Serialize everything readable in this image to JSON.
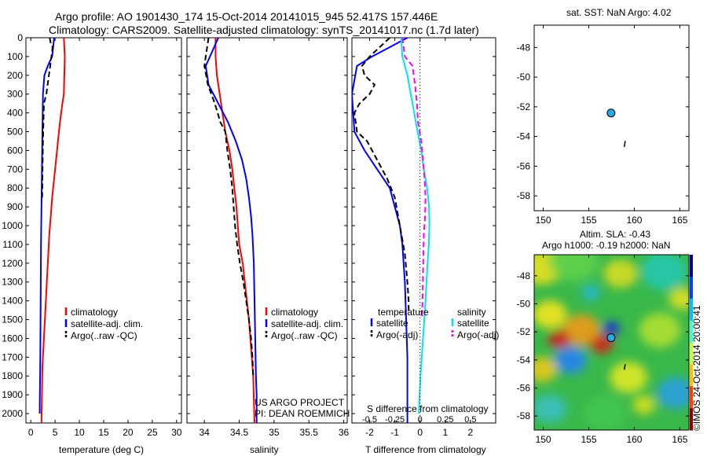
{
  "header": {
    "line1": "Argo profile: AO 1901430_174 15-Oct-2014 20141015_945 52.417S 157.446E",
    "line2": "Climatology: CARS2009. Satellite-adjusted climatology: synTS_20141017.nc (1.7d later)"
  },
  "colors": {
    "climatology": "#ff0000",
    "satellite": "#0000ff",
    "argo": "#000000",
    "argo_dash": "#000000",
    "salinity_sat": "#00e5ee",
    "salinity_argo": "#ff00ff"
  },
  "chart_data": [
    {
      "type": "line",
      "id": "temperature",
      "xlabel": "temperature (deg C)",
      "ylabel": "",
      "xlim": [
        -1,
        31
      ],
      "ylim": [
        2050,
        0
      ],
      "xticks": [
        0,
        5,
        10,
        15,
        20,
        25,
        30
      ],
      "yticks": [
        0,
        100,
        200,
        300,
        400,
        500,
        600,
        700,
        800,
        900,
        1000,
        1100,
        1200,
        1300,
        1400,
        1500,
        1600,
        1700,
        1800,
        1900,
        2000
      ],
      "legend": [
        "climatology",
        "satellite-adj. clim.",
        "Argo(..raw -QC)"
      ],
      "legend_position": "lower-right",
      "series": [
        {
          "name": "climatology",
          "style": "solid",
          "color": "#ff0000",
          "x": [
            6.8,
            6.9,
            7.0,
            6.9,
            6.8,
            6.5,
            6.0,
            5.6,
            5.2,
            4.8,
            4.4,
            4.1,
            3.8,
            3.6,
            3.4,
            3.2,
            3.0,
            2.8,
            2.6,
            2.4,
            2.3,
            2.2
          ],
          "y": [
            0,
            50,
            100,
            200,
            300,
            350,
            450,
            550,
            650,
            750,
            850,
            950,
            1050,
            1150,
            1250,
            1350,
            1450,
            1550,
            1650,
            1750,
            1900,
            2050
          ]
        },
        {
          "name": "satellite-adj. clim.",
          "style": "solid",
          "color": "#0000ff",
          "x": [
            4.8,
            4.4,
            3.5,
            2.8,
            2.5,
            2.4,
            2.3,
            2.2,
            2.1,
            2.05,
            2.0,
            1.95,
            1.9,
            1.85,
            1.85
          ],
          "y": [
            0,
            100,
            150,
            200,
            300,
            500,
            700,
            900,
            1100,
            1300,
            1500,
            1700,
            1850,
            1950,
            2000
          ]
        },
        {
          "name": "Argo(..raw -QC)",
          "style": "dashed",
          "color": "#000000",
          "x": [
            3.9,
            4.1,
            4.5,
            4.0,
            3.2,
            2.7,
            2.6,
            2.5,
            2.45,
            2.4,
            2.35
          ],
          "y": [
            0,
            30,
            50,
            150,
            300,
            350,
            450,
            550,
            650,
            750,
            850
          ]
        }
      ],
      "annotations": []
    },
    {
      "type": "line",
      "id": "salinity",
      "xlabel": "salinity",
      "ylabel": "",
      "xlim": [
        33.75,
        36.05
      ],
      "ylim": [
        2050,
        0
      ],
      "xticks": [
        34,
        34.5,
        35,
        35.5,
        36
      ],
      "legend": [
        "climatology",
        "satellite-adj. clim.",
        "Argo(..raw -QC)"
      ],
      "legend_position": "lower-right",
      "series": [
        {
          "name": "climatology",
          "style": "solid",
          "color": "#ff0000",
          "x": [
            34.16,
            34.16,
            34.18,
            34.22,
            34.26,
            34.3,
            34.36,
            34.4,
            34.43,
            34.46,
            34.48,
            34.5,
            34.55,
            34.58,
            34.61,
            34.64,
            34.66,
            34.68,
            34.7,
            34.72
          ],
          "y": [
            0,
            100,
            200,
            300,
            400,
            500,
            600,
            700,
            800,
            900,
            1000,
            1100,
            1200,
            1300,
            1400,
            1500,
            1600,
            1700,
            1800,
            2050
          ]
        },
        {
          "name": "satellite-adj. clim.",
          "style": "solid",
          "color": "#0000ff",
          "x": [
            34.2,
            34.08,
            34.02,
            34.06,
            34.2,
            34.34,
            34.45,
            34.54,
            34.6,
            34.64,
            34.67,
            34.69,
            34.71,
            34.72,
            34.73,
            34.74,
            34.75,
            34.75,
            34.75
          ],
          "y": [
            0,
            100,
            150,
            250,
            350,
            450,
            550,
            650,
            750,
            850,
            950,
            1050,
            1200,
            1400,
            1600,
            1800,
            1900,
            2000,
            2050
          ]
        },
        {
          "name": "Argo(..raw -QC)",
          "style": "dashed",
          "color": "#000000",
          "x": [
            34.06,
            34.02,
            34.0,
            34.05,
            34.15,
            34.23,
            34.3,
            34.33,
            34.37,
            34.4,
            34.42,
            34.44,
            34.47,
            34.51,
            34.56,
            34.6,
            34.64,
            34.67,
            34.69,
            34.7
          ],
          "y": [
            0,
            100,
            150,
            250,
            350,
            450,
            500,
            600,
            700,
            800,
            900,
            1000,
            1100,
            1200,
            1300,
            1400,
            1500,
            1600,
            1700,
            1800
          ]
        }
      ],
      "annotations": [
        "US ARGO PROJECT",
        "PI: DEAN ROEMMICH"
      ]
    },
    {
      "type": "line",
      "id": "difference",
      "xlabel": "T difference from climatology",
      "ylabel": "",
      "xlabel_top": "S difference from climatology",
      "xlim": [
        -2.7,
        3.0
      ],
      "ylim": [
        2050,
        0
      ],
      "xticks": [
        -2,
        -1,
        0,
        1,
        2
      ],
      "xticks_salinity": [
        -0.5,
        -0.25,
        0,
        0.25,
        0.5
      ],
      "legend_groups": [
        {
          "title": "temperature",
          "entries": [
            "satellite",
            "Argo(-adj)"
          ]
        },
        {
          "title": "salinity",
          "entries": [
            "satellite",
            "Argo(-adj)"
          ]
        }
      ],
      "legend_position": "lower-center",
      "series": [
        {
          "name": "satellite",
          "group": "temperature",
          "style": "solid",
          "color": "#0000ff",
          "x": [
            -0.5,
            -1.2,
            -1.9,
            -2.5,
            -2.7,
            -2.6,
            -2.2,
            -1.7,
            -1.2,
            -1.0,
            -0.8,
            -0.7,
            -0.6,
            -0.55,
            -0.5,
            -0.5
          ],
          "y": [
            0,
            50,
            100,
            150,
            300,
            500,
            600,
            700,
            800,
            900,
            1000,
            1100,
            1300,
            1500,
            1700,
            2050
          ]
        },
        {
          "name": "Argo(-adj)",
          "group": "temperature",
          "style": "dashed",
          "color": "#000000",
          "x": [
            -1.2,
            -1.6,
            -2.0,
            -2.3,
            -2.2,
            -1.8,
            -2.0,
            -2.4,
            -2.6,
            -2.5,
            -2.1,
            -1.7,
            -1.3,
            -1.0,
            -0.8,
            -0.6,
            -0.5,
            -0.45,
            -0.45
          ],
          "y": [
            0,
            50,
            100,
            150,
            200,
            250,
            300,
            350,
            400,
            500,
            550,
            650,
            750,
            850,
            1000,
            1150,
            1300,
            1400,
            1450
          ]
        },
        {
          "name": "satellite",
          "group": "salinity",
          "style": "solid",
          "color": "#00e5ee",
          "x": [
            -0.75,
            -0.7,
            -0.5,
            -0.3,
            -0.1,
            0.05,
            0.15,
            0.28,
            0.36,
            0.37,
            0.35,
            0.3,
            0.22,
            0.12,
            0.02,
            -0.05
          ],
          "y": [
            0,
            100,
            200,
            350,
            500,
            600,
            700,
            800,
            900,
            1000,
            1100,
            1200,
            1400,
            1600,
            1800,
            2000
          ]
        },
        {
          "name": "Argo(-adj)",
          "group": "salinity",
          "style": "dashed",
          "color": "#ff00ff",
          "x": [
            -0.7,
            -0.6,
            -0.3,
            -0.2,
            -0.12,
            -0.08,
            0.05,
            0.12,
            0.18,
            0.22,
            0.2,
            0.15,
            0.12,
            0.1,
            0.08
          ],
          "y": [
            0,
            100,
            150,
            250,
            350,
            450,
            550,
            650,
            750,
            850,
            950,
            1050,
            1250,
            1400,
            1500
          ]
        }
      ]
    },
    {
      "type": "scatter",
      "id": "sst-position",
      "title": "sat. SST: NaN Argo: 4.02",
      "xlim": [
        149,
        166
      ],
      "ylim": [
        -59,
        -46.5
      ],
      "xticks": [
        150,
        155,
        160,
        165
      ],
      "yticks": [
        -48,
        -50,
        -52,
        -54,
        -56,
        -58
      ],
      "points": [
        {
          "x": 157.446,
          "y": -52.417,
          "marker": "circle",
          "color": "#29a9e0"
        }
      ],
      "track": {
        "x": [
          159.0,
          158.9
        ],
        "y": [
          -54.3,
          -54.7
        ]
      }
    },
    {
      "type": "heatmap",
      "id": "altimetry",
      "title_lines": [
        "Altim. SLA: -0.43",
        "Argo h1000: -0.19 h2000: NaN"
      ],
      "xlim": [
        149,
        166
      ],
      "ylim": [
        -59,
        -46.5
      ],
      "xticks": [
        150,
        155,
        160,
        165
      ],
      "yticks": [
        -48,
        -50,
        -52,
        -54,
        -56,
        -58
      ],
      "colormap": "jet",
      "points": [
        {
          "x": 157.446,
          "y": -52.417,
          "marker": "circle",
          "color": "#29a9e0"
        }
      ],
      "side_label": "©IMOS 24-Oct-2014 20:00:41"
    }
  ]
}
